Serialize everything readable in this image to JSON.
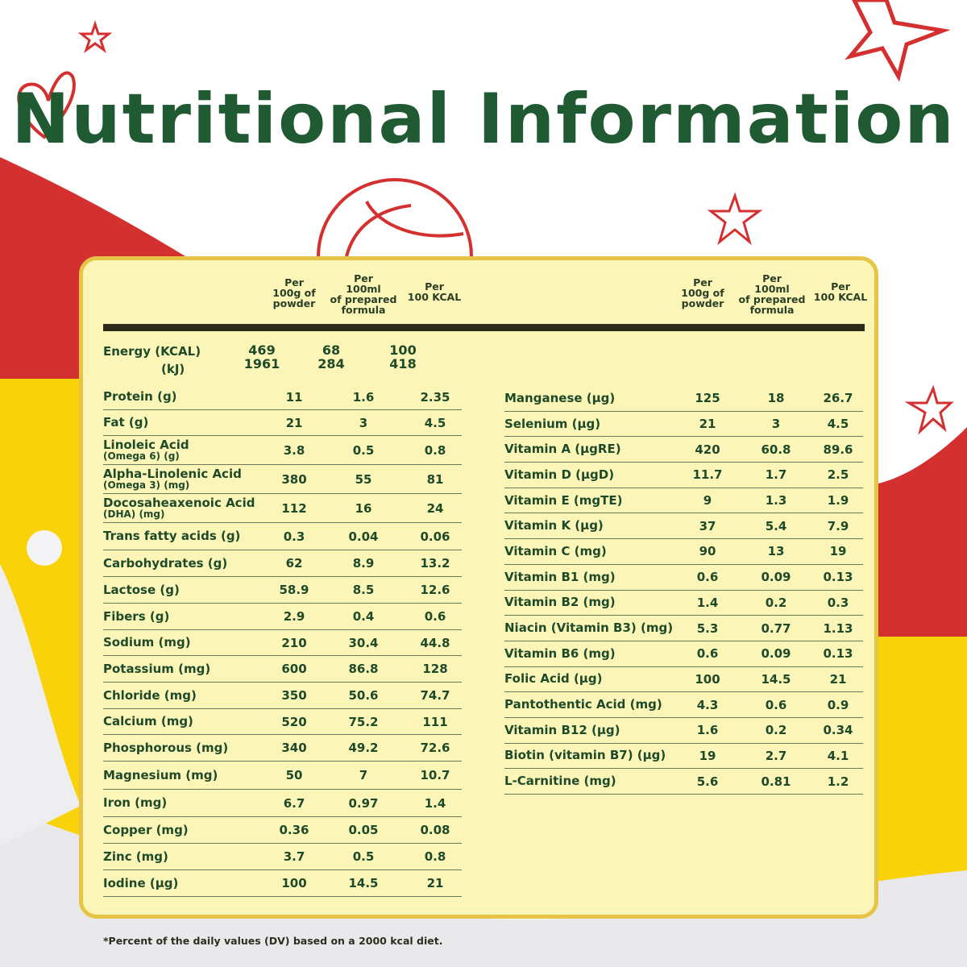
{
  "title": "Nutritional Information",
  "colors": {
    "title": "#1f5a32",
    "panel": "#fbf6b8",
    "border": "#e6c445",
    "red": "#d4302f",
    "yellow": "#f9d20a"
  },
  "headers": [
    "Per 100g of powder",
    "Per 100ml of prepared formula",
    "Per 100 KCAL"
  ],
  "header_lines": [
    [
      "Per",
      "100g of",
      "powder"
    ],
    [
      "Per",
      "100ml",
      "of prepared",
      "formula"
    ],
    [
      "Per",
      "100 KCAL"
    ]
  ],
  "energy": {
    "label": "Energy (KCAL)",
    "sublabel": "(kJ)",
    "kcal": [
      "469",
      "68",
      "100"
    ],
    "kj": [
      "1961",
      "284",
      "418"
    ]
  },
  "left_rows": [
    {
      "label": "Protein (g)",
      "values": [
        "11",
        "1.6",
        "2.35"
      ]
    },
    {
      "label": "Fat (g)",
      "values": [
        "21",
        "3",
        "4.5"
      ]
    },
    {
      "label": "Linoleic Acid",
      "sub": "(Omega 6) (g)",
      "values": [
        "3.8",
        "0.5",
        "0.8"
      ]
    },
    {
      "label": "Alpha-Linolenic Acid",
      "sub": "(Omega 3) (mg)",
      "values": [
        "380",
        "55",
        "81"
      ]
    },
    {
      "label": "Docosaheaxenoic Acid",
      "sub": "(DHA) (mg)",
      "values": [
        "112",
        "16",
        "24"
      ]
    },
    {
      "label": "Trans fatty acids (g)",
      "values": [
        "0.3",
        "0.04",
        "0.06"
      ]
    },
    {
      "label": "Carbohydrates (g)",
      "values": [
        "62",
        "8.9",
        "13.2"
      ]
    },
    {
      "label": "Lactose (g)",
      "values": [
        "58.9",
        "8.5",
        "12.6"
      ]
    },
    {
      "label": "Fibers (g)",
      "values": [
        "2.9",
        "0.4",
        "0.6"
      ]
    },
    {
      "label": "Sodium (mg)",
      "values": [
        "210",
        "30.4",
        "44.8"
      ]
    },
    {
      "label": "Potassium (mg)",
      "values": [
        "600",
        "86.8",
        "128"
      ]
    },
    {
      "label": "Chloride (mg)",
      "values": [
        "350",
        "50.6",
        "74.7"
      ]
    },
    {
      "label": "Calcium (mg)",
      "values": [
        "520",
        "75.2",
        "111"
      ]
    },
    {
      "label": "Phosphorous (mg)",
      "values": [
        "340",
        "49.2",
        "72.6"
      ]
    },
    {
      "label": "Magnesium (mg)",
      "values": [
        "50",
        "7",
        "10.7"
      ]
    },
    {
      "label": "Iron (mg)",
      "values": [
        "6.7",
        "0.97",
        "1.4"
      ]
    },
    {
      "label": "Copper (mg)",
      "values": [
        "0.36",
        "0.05",
        "0.08"
      ]
    },
    {
      "label": "Zinc (mg)",
      "values": [
        "3.7",
        "0.5",
        "0.8"
      ]
    },
    {
      "label": "Iodine (µg)",
      "values": [
        "100",
        "14.5",
        "21"
      ]
    }
  ],
  "right_rows": [
    {
      "label": "Manganese (µg)",
      "values": [
        "125",
        "18",
        "26.7"
      ]
    },
    {
      "label": "Selenium (µg)",
      "values": [
        "21",
        "3",
        "4.5"
      ]
    },
    {
      "label": "Vitamin A (µgRE)",
      "values": [
        "420",
        "60.8",
        "89.6"
      ]
    },
    {
      "label": "Vitamin D (µgD)",
      "values": [
        "11.7",
        "1.7",
        "2.5"
      ]
    },
    {
      "label": "Vitamin E (mgTE)",
      "values": [
        "9",
        "1.3",
        "1.9"
      ]
    },
    {
      "label": "Vitamin K (µg)",
      "values": [
        "37",
        "5.4",
        "7.9"
      ]
    },
    {
      "label": "Vitamin C (mg)",
      "values": [
        "90",
        "13",
        "19"
      ]
    },
    {
      "label": "Vitamin B1 (mg)",
      "values": [
        "0.6",
        "0.09",
        "0.13"
      ]
    },
    {
      "label": "Vitamin B2 (mg)",
      "values": [
        "1.4",
        "0.2",
        "0.3"
      ]
    },
    {
      "label": "Niacin (Vitamin B3) (mg)",
      "values": [
        "5.3",
        "0.77",
        "1.13"
      ]
    },
    {
      "label": "Vitamin B6 (mg)",
      "values": [
        "0.6",
        "0.09",
        "0.13"
      ]
    },
    {
      "label": "Folic Acid (µg)",
      "values": [
        "100",
        "14.5",
        "21"
      ]
    },
    {
      "label": "Pantothentic Acid (mg)",
      "values": [
        "4.3",
        "0.6",
        "0.9"
      ]
    },
    {
      "label": "Vitamin B12 (µg)",
      "values": [
        "1.6",
        "0.2",
        "0.34"
      ]
    },
    {
      "label": "Biotin (vitamin B7) (µg)",
      "values": [
        "19",
        "2.7",
        "4.1"
      ]
    },
    {
      "label": "L-Carnitine (mg)",
      "values": [
        "5.6",
        "0.81",
        "1.2"
      ]
    }
  ],
  "footnote": "*Percent of the daily values (DV) based on a 2000 kcal diet."
}
